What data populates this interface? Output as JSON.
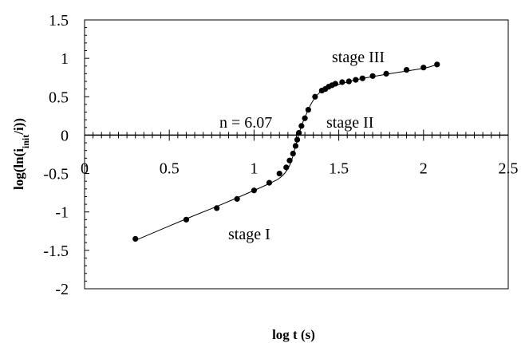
{
  "chart_data": {
    "type": "scatter",
    "xlabel": "log t (s)",
    "ylabel": {
      "prefix": "log(ln(i",
      "subscript": "init",
      "suffix": "/i))"
    },
    "xlim": [
      0,
      2.5
    ],
    "ylim": [
      -2,
      1.5
    ],
    "x_ticks": [
      0,
      0.5,
      1,
      1.5,
      2,
      2.5
    ],
    "x_tick_labels": [
      "0",
      "0.5",
      "1",
      "1.5",
      "2",
      "2.5"
    ],
    "y_ticks": [
      1.5,
      1,
      0.5,
      0,
      -0.5,
      -1,
      -1.5,
      -2
    ],
    "y_tick_labels": [
      "1.5",
      "1",
      "0.5",
      "0",
      "-0.5",
      "-1",
      "-1.5",
      "-2"
    ],
    "grid": false,
    "legend": "none",
    "series": [
      {
        "points": [
          [
            0.3,
            -1.35
          ],
          [
            0.6,
            -1.1
          ],
          [
            0.78,
            -0.95
          ],
          [
            0.9,
            -0.83
          ],
          [
            1.0,
            -0.72
          ],
          [
            1.09,
            -0.62
          ],
          [
            1.15,
            -0.5
          ],
          [
            1.19,
            -0.42
          ],
          [
            1.21,
            -0.33
          ],
          [
            1.23,
            -0.24
          ],
          [
            1.245,
            -0.14
          ],
          [
            1.255,
            -0.06
          ],
          [
            1.265,
            0.03
          ],
          [
            1.28,
            0.12
          ],
          [
            1.3,
            0.22
          ],
          [
            1.32,
            0.33
          ],
          [
            1.36,
            0.5
          ],
          [
            1.4,
            0.58
          ],
          [
            1.42,
            0.6
          ],
          [
            1.44,
            0.63
          ],
          [
            1.46,
            0.65
          ],
          [
            1.48,
            0.67
          ],
          [
            1.52,
            0.69
          ],
          [
            1.56,
            0.7
          ],
          [
            1.6,
            0.72
          ],
          [
            1.64,
            0.74
          ],
          [
            1.7,
            0.77
          ],
          [
            1.78,
            0.8
          ],
          [
            1.9,
            0.85
          ],
          [
            2.0,
            0.88
          ],
          [
            2.08,
            0.92
          ]
        ],
        "fit_curve": [
          [
            0.3,
            -1.37
          ],
          [
            0.6,
            -1.09
          ],
          [
            0.8,
            -0.91
          ],
          [
            1.0,
            -0.72
          ],
          [
            1.1,
            -0.62
          ],
          [
            1.15,
            -0.56
          ],
          [
            1.19,
            -0.47
          ],
          [
            1.22,
            -0.34
          ],
          [
            1.25,
            -0.1
          ],
          [
            1.28,
            0.12
          ],
          [
            1.31,
            0.28
          ],
          [
            1.34,
            0.42
          ],
          [
            1.38,
            0.54
          ],
          [
            1.42,
            0.6
          ],
          [
            1.5,
            0.66
          ],
          [
            1.6,
            0.72
          ],
          [
            1.8,
            0.8
          ],
          [
            2.0,
            0.87
          ],
          [
            2.08,
            0.92
          ]
        ]
      }
    ],
    "annotations": {
      "stage_iii": "stage III",
      "stage_ii": "stage II",
      "n_value": "n = 6.07",
      "stage_i": "stage I"
    },
    "colors": {
      "background": "#ffffff",
      "ink": "#000000"
    }
  }
}
